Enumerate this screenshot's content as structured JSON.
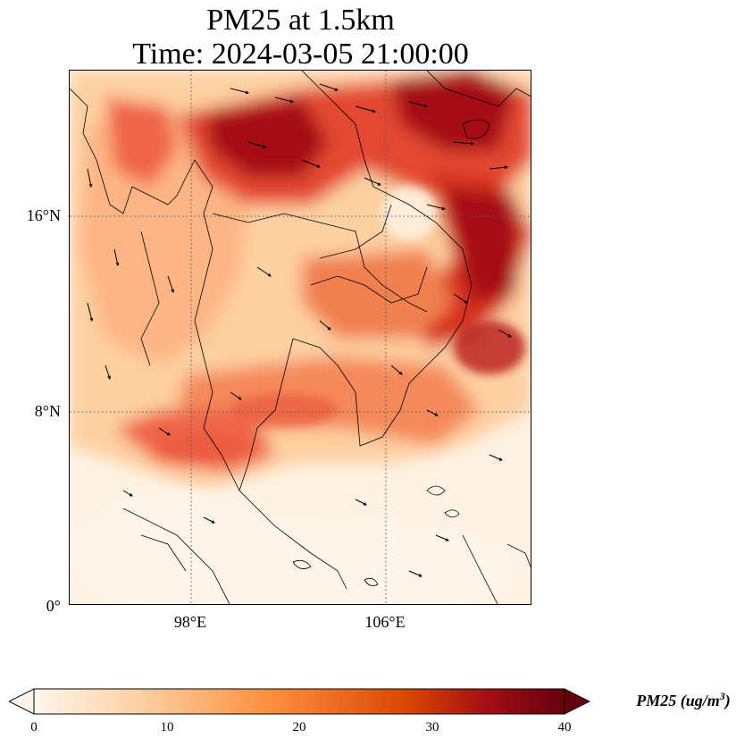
{
  "title": {
    "line1": "PM25 at 1.5km",
    "line2": "Time: 2024-03-05 21:00:00"
  },
  "axes": {
    "lat_labels": [
      "16°N",
      "8°N",
      "0°"
    ],
    "lon_labels": [
      "98°E",
      "106°E"
    ]
  },
  "colorbar": {
    "ticks": [
      "0",
      "10",
      "20",
      "30",
      "40"
    ],
    "label_main": "PM25 (ug/m",
    "label_sup": "3",
    "label_end": ")",
    "colors": [
      "#fff5eb",
      "#fdd0a2",
      "#fd8d3c",
      "#d94801",
      "#a50f15",
      "#67000d"
    ],
    "extend": "both"
  },
  "map": {
    "colormap": "OrRd",
    "gridlines": "dotted",
    "features": [
      "coastlines",
      "country-borders",
      "wind-vectors"
    ]
  }
}
